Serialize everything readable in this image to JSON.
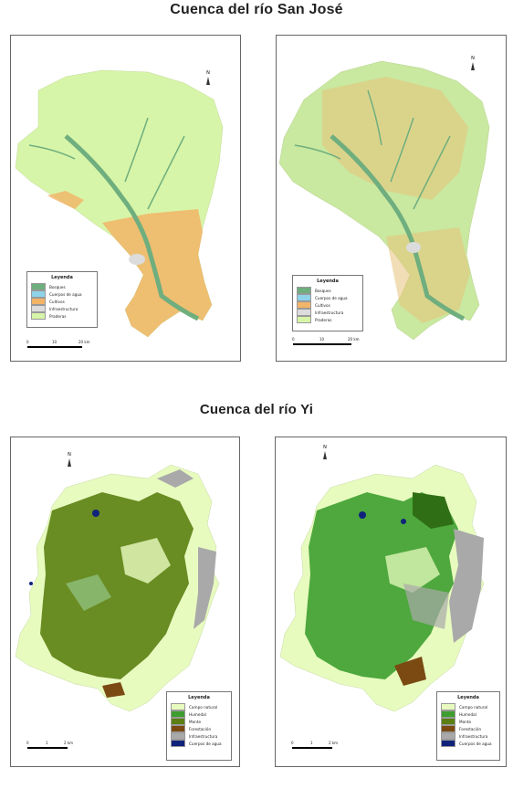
{
  "titles": {
    "top": "Cuenca del río San José",
    "bottom": "Cuenca del río Yi"
  },
  "north_label": "N",
  "scale_sanjose": {
    "zero": "0",
    "mid": "10",
    "end": "20 km"
  },
  "scale_yi": {
    "zero": "0",
    "mid": "1",
    "end": "2 km"
  },
  "legend_sanjose": {
    "title": "Leyenda",
    "items": [
      {
        "label": "Bosques",
        "color": "#6fae7e"
      },
      {
        "label": "Cuerpos de agua",
        "color": "#8fd3e8"
      },
      {
        "label": "Cultivos",
        "color": "#f2b467"
      },
      {
        "label": "Infraestructura",
        "color": "#dcdcdc"
      },
      {
        "label": "Praderas",
        "color": "#d7f5a8"
      }
    ]
  },
  "legend_yi": {
    "title": "Leyenda",
    "items": [
      {
        "label": "Campo natural",
        "color": "#e8fbbf"
      },
      {
        "label": "Humedal",
        "color": "#3d9e2f"
      },
      {
        "label": "Monte",
        "color": "#5b7f12"
      },
      {
        "label": "Forestación",
        "color": "#7a4a12"
      },
      {
        "label": "Infraestructura",
        "color": "#a9a9a9"
      },
      {
        "label": "Cuerpos de agua",
        "color": "#10237a"
      }
    ]
  },
  "colors": {
    "sj_grass": "#d7f5a8",
    "sj_crop": "#f2b467",
    "sj_forest": "#6fae7e",
    "sj_infra": "#dcdcdc",
    "yi_natural": "#e8fbbf",
    "yi_monte": "#5b7f12",
    "yi_humedal": "#3d9e2f",
    "yi_forest": "#7a4a12",
    "yi_infra": "#a9a9a9",
    "yi_water": "#10237a",
    "yi_light": "#8fbf7a"
  }
}
